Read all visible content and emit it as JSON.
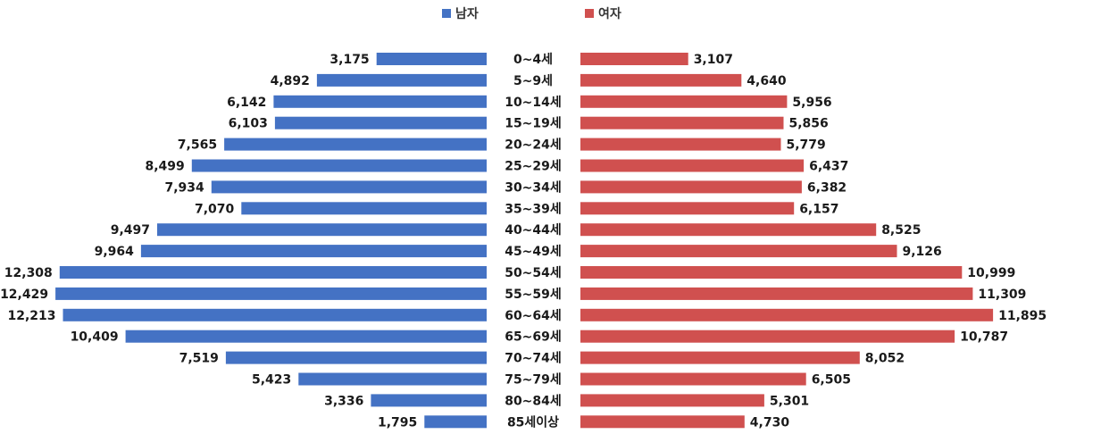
{
  "colors": {
    "male": "#4472C4",
    "female": "#D0504F"
  },
  "chart_data": {
    "type": "bar",
    "orientation": "horizontal",
    "variant": "population-pyramid",
    "legend_position": "top-center",
    "grid": false,
    "categories": [
      "0~4세",
      "5~9세",
      "10~14세",
      "15~19세",
      "20~24세",
      "25~29세",
      "30~34세",
      "35~39세",
      "40~44세",
      "45~49세",
      "50~54세",
      "55~59세",
      "60~64세",
      "65~69세",
      "70~74세",
      "75~79세",
      "80~84세",
      "85세이상"
    ],
    "series": [
      {
        "name": "남자",
        "side": "left",
        "values": [
          3175,
          4892,
          6142,
          6103,
          7565,
          8499,
          7934,
          7070,
          9497,
          9964,
          12308,
          12429,
          12213,
          10409,
          7519,
          5423,
          3336,
          1795
        ],
        "labels": [
          "3,175",
          "4,892",
          "6,142",
          "6,103",
          "7,565",
          "8,499",
          "7,934",
          "7,070",
          "9,497",
          "9,964",
          "12,308",
          "12,429",
          "12,213",
          "10,409",
          "7,519",
          "5,423",
          "3,336",
          "1,795"
        ]
      },
      {
        "name": "여자",
        "side": "right",
        "values": [
          3107,
          4640,
          5956,
          5856,
          5779,
          6437,
          6382,
          6157,
          8525,
          9126,
          10999,
          11309,
          11895,
          10787,
          8052,
          6505,
          5301,
          4730
        ],
        "labels": [
          "3,107",
          "4,640",
          "5,956",
          "5,856",
          "5,779",
          "6,437",
          "6,382",
          "6,157",
          "8,525",
          "9,126",
          "10,999",
          "11,309",
          "11,895",
          "10,787",
          "8,052",
          "6,505",
          "5,301",
          "4,730"
        ]
      }
    ]
  }
}
